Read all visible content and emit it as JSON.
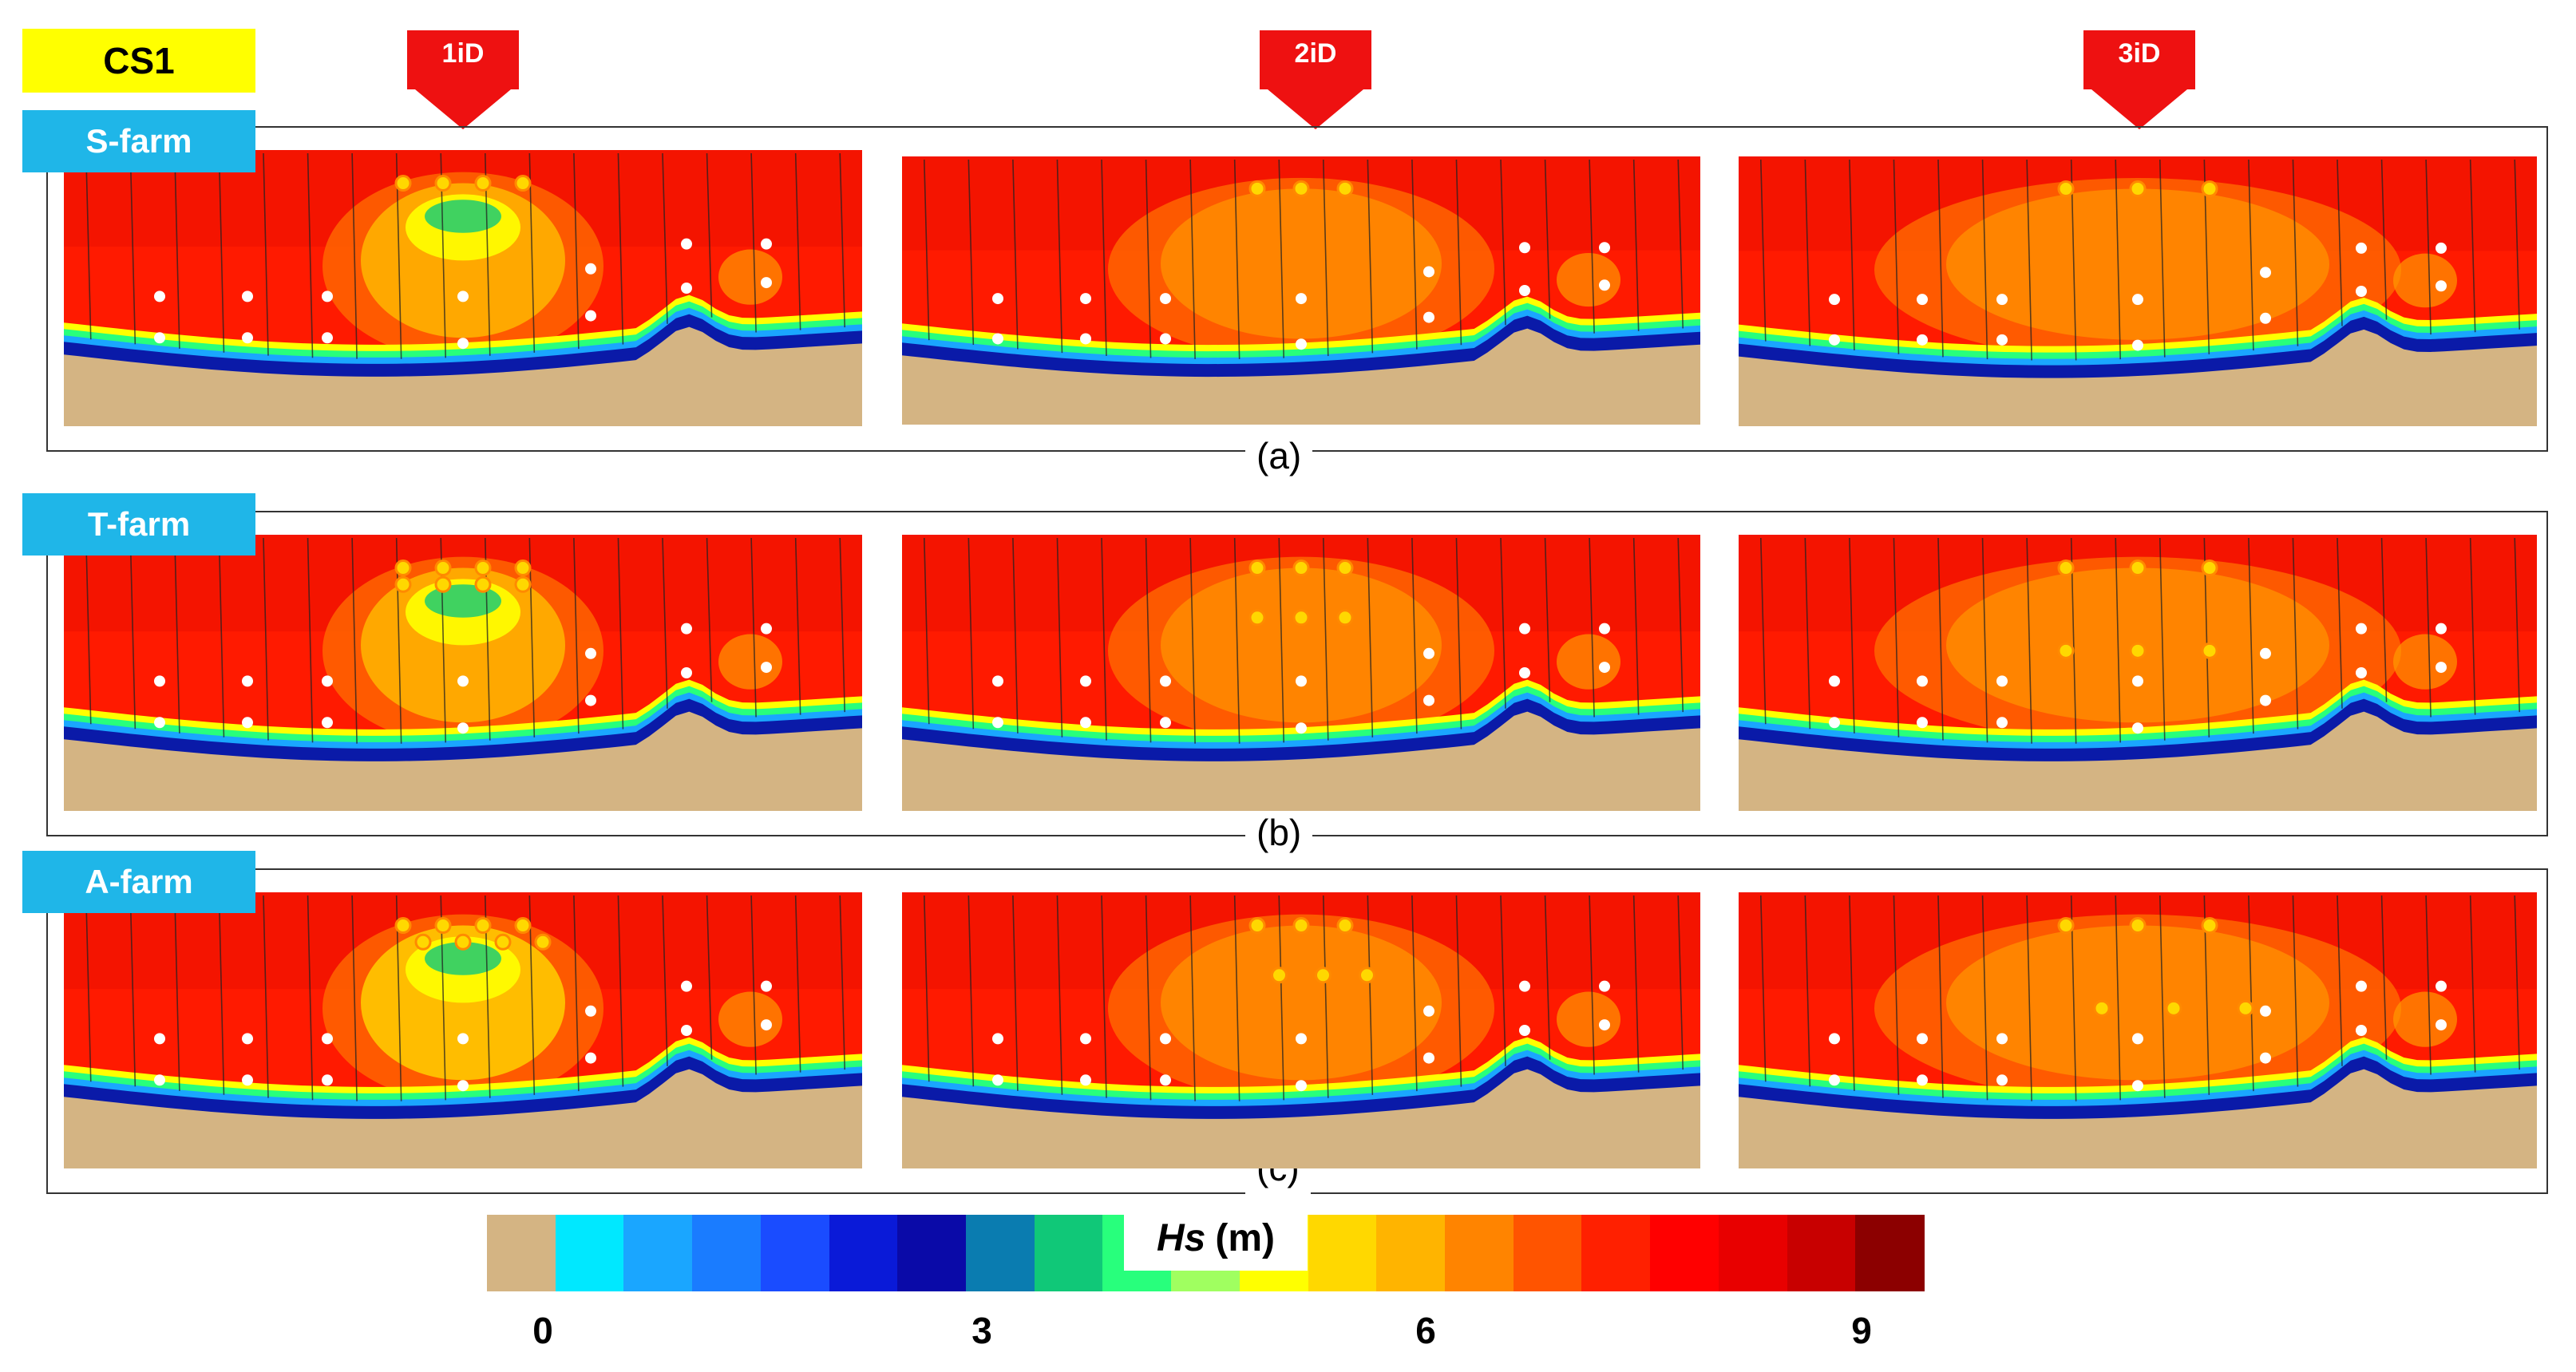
{
  "case_label": "CS1",
  "arrows": [
    {
      "label": "1iD",
      "color": "#ee1111"
    },
    {
      "label": "2iD",
      "color": "#ee1111"
    },
    {
      "label": "3iD",
      "color": "#ee1111"
    }
  ],
  "rows": [
    {
      "farm": "S-farm",
      "sub_label": "(a)",
      "sub_letter": "a",
      "layout": "single-row"
    },
    {
      "farm": "T-farm",
      "sub_label": "(b)",
      "sub_letter": "b",
      "layout": "two-row"
    },
    {
      "farm": "A-farm",
      "sub_label": "(c)",
      "sub_letter": "c",
      "layout": "staggered"
    }
  ],
  "colors": {
    "land": "#d4b483",
    "sea": "#ff1a00",
    "sea_dark": "#e00c00",
    "shore_dark": "#0a1aa8",
    "label_blue": "#1fb6e8",
    "label_yellow": "#ffff00"
  },
  "chart_data": {
    "type": "heatmap",
    "title": "Hs (m)",
    "title_var": "Hs",
    "title_unit": "(m)",
    "colorbar": {
      "min": 0,
      "max": 9,
      "ticks": [
        0,
        3,
        6,
        9
      ],
      "tick_labels": [
        "0",
        "3",
        "6",
        "9"
      ],
      "colors": [
        "#d4b483",
        "#00e8ff",
        "#1aa6ff",
        "#1a7cff",
        "#1a4cff",
        "#0a1ad8",
        "#0a0aa8",
        "#0a7cb0",
        "#10c878",
        "#28ff7c",
        "#a0ff60",
        "#ffff00",
        "#ffd800",
        "#ffb400",
        "#ff8400",
        "#ff5400",
        "#ff2000",
        "#ff0000",
        "#e80000",
        "#c80000",
        "#8c0000"
      ]
    },
    "panels": [
      {
        "row": "S-farm",
        "spacing": "1iD"
      },
      {
        "row": "S-farm",
        "spacing": "2iD"
      },
      {
        "row": "S-farm",
        "spacing": "3iD"
      },
      {
        "row": "T-farm",
        "spacing": "1iD"
      },
      {
        "row": "T-farm",
        "spacing": "2iD"
      },
      {
        "row": "T-farm",
        "spacing": "3iD"
      },
      {
        "row": "A-farm",
        "spacing": "1iD"
      },
      {
        "row": "A-farm",
        "spacing": "2iD"
      },
      {
        "row": "A-farm",
        "spacing": "3iD"
      }
    ]
  }
}
